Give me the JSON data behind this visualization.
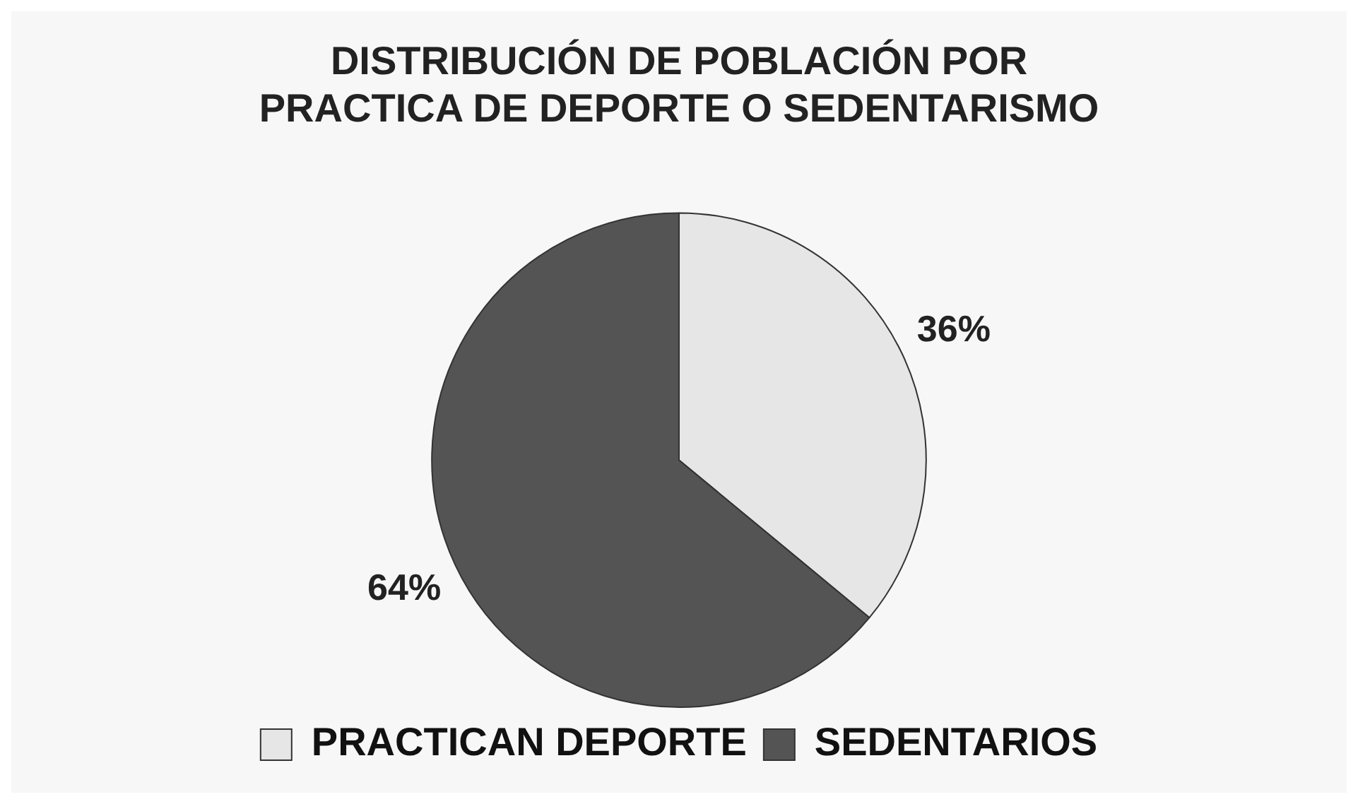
{
  "chart_data": {
    "type": "pie",
    "title": "DISTRIBUCIÓN DE POBLACIÓN POR\nPRACTICA DE DEPORTE O SEDENTARISMO",
    "categories": [
      "PRACTICAN DEPORTE",
      "SEDENTARIOS"
    ],
    "values": [
      36,
      64
    ],
    "value_labels": [
      "36%",
      "64%"
    ],
    "colors": [
      "#e6e6e6",
      "#545454"
    ],
    "legend": "bottom"
  }
}
